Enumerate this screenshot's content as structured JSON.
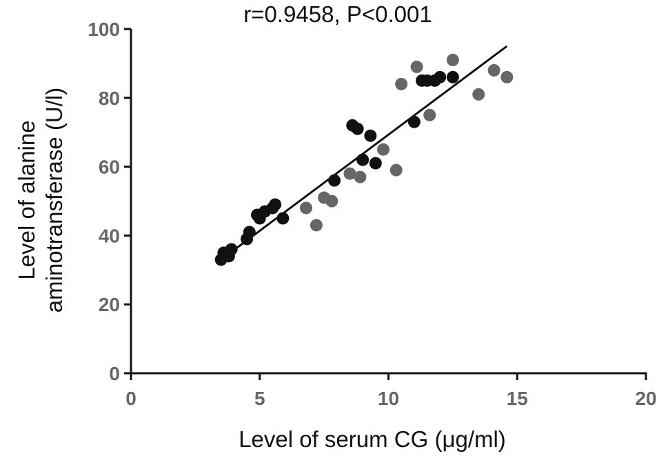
{
  "chart_data": {
    "type": "scatter",
    "title": "r=0.9458, P<0.001",
    "xlabel": "Level of serum CG  (μg/ml)",
    "ylabel_lines": [
      "Level of alanine",
      "aminotransferase (U/l)"
    ],
    "xlim": [
      0,
      20
    ],
    "ylim": [
      0,
      100
    ],
    "xticks": [
      0,
      5,
      10,
      15,
      20
    ],
    "yticks": [
      0,
      20,
      40,
      60,
      80,
      100
    ],
    "grid": false,
    "legend": "none",
    "colors": {
      "series_a": "#111111",
      "series_b": "#666666",
      "axis": "#111111",
      "tick_label": "#666666"
    },
    "series": [
      {
        "color_key": "series_a",
        "points": [
          [
            3.5,
            33
          ],
          [
            3.6,
            35
          ],
          [
            3.8,
            34
          ],
          [
            3.9,
            36
          ],
          [
            4.5,
            39
          ],
          [
            4.6,
            41
          ],
          [
            4.9,
            46
          ],
          [
            5.0,
            45
          ],
          [
            5.2,
            47
          ],
          [
            5.5,
            48
          ],
          [
            5.6,
            49
          ],
          [
            5.9,
            45
          ],
          [
            7.9,
            56
          ],
          [
            8.6,
            72
          ],
          [
            8.8,
            71
          ],
          [
            9.0,
            62
          ],
          [
            9.3,
            69
          ],
          [
            9.5,
            61
          ],
          [
            11.0,
            73
          ],
          [
            11.3,
            85
          ],
          [
            11.5,
            85
          ],
          [
            11.8,
            85
          ],
          [
            12.0,
            86
          ],
          [
            12.5,
            86
          ]
        ]
      },
      {
        "color_key": "series_b",
        "points": [
          [
            6.8,
            48
          ],
          [
            7.2,
            43
          ],
          [
            7.5,
            51
          ],
          [
            7.8,
            50
          ],
          [
            8.5,
            58
          ],
          [
            8.9,
            57
          ],
          [
            9.8,
            65
          ],
          [
            10.3,
            59
          ],
          [
            10.5,
            84
          ],
          [
            11.1,
            89
          ],
          [
            11.6,
            75
          ],
          [
            12.5,
            91
          ],
          [
            13.5,
            81
          ],
          [
            14.1,
            88
          ],
          [
            14.6,
            86
          ]
        ]
      }
    ],
    "fit_line": {
      "x": [
        3.5,
        14.6
      ],
      "y": [
        33,
        95
      ]
    }
  }
}
